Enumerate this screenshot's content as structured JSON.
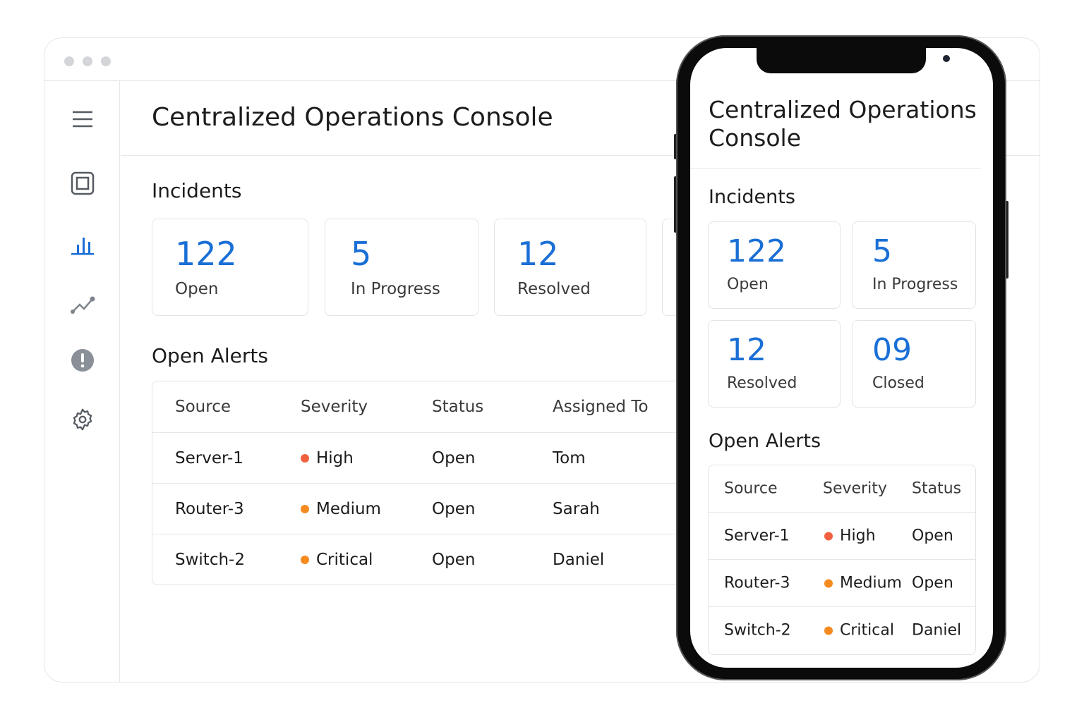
{
  "app": {
    "title": "Centralized Operations Console"
  },
  "sidebar": {
    "items": [
      {
        "icon": "menu-icon"
      },
      {
        "icon": "dashboard-icon"
      },
      {
        "icon": "bar-chart-icon",
        "active": true
      },
      {
        "icon": "line-chart-icon"
      },
      {
        "icon": "alert-icon"
      },
      {
        "icon": "settings-icon"
      }
    ]
  },
  "incidents": {
    "heading": "Incidents",
    "cards": [
      {
        "value": "122",
        "label": "Open"
      },
      {
        "value": "5",
        "label": "In Progress"
      },
      {
        "value": "12",
        "label": "Resolved"
      },
      {
        "value": "09",
        "label": "Closed"
      }
    ]
  },
  "alerts": {
    "heading": "Open Alerts",
    "columns": [
      "Source",
      "Severity",
      "Status",
      "Assigned To"
    ],
    "rows": [
      {
        "source": "Server-1",
        "severity": "High",
        "status": "Open",
        "assigned": "Tom",
        "color": "#f2613f"
      },
      {
        "source": "Router-3",
        "severity": "Medium",
        "status": "Open",
        "assigned": "Sarah",
        "color": "#f58a1f"
      },
      {
        "source": "Switch-2",
        "severity": "Critical",
        "status": "Open",
        "assigned": "Daniel",
        "color": "#f58a1f"
      }
    ]
  },
  "mobile": {
    "title_line1": "Centralized Operations",
    "title_line2": "Console",
    "status_col": [
      "Open",
      "Open",
      "Daniel"
    ]
  },
  "colors": {
    "accent": "#1a6fd6"
  }
}
